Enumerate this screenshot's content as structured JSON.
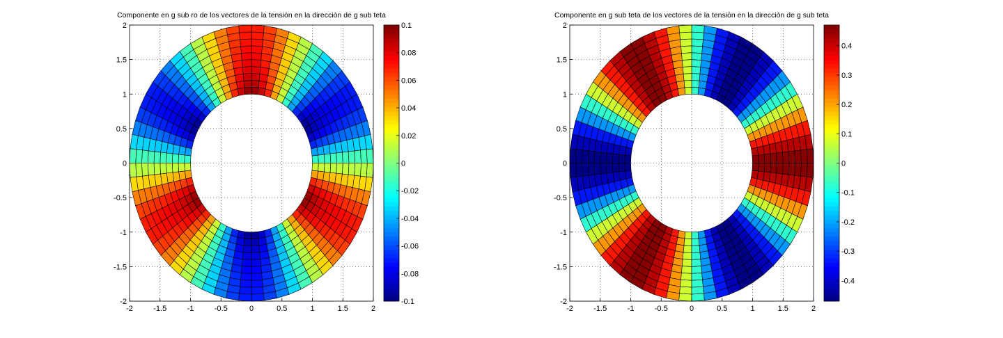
{
  "chart_data": [
    {
      "type": "heatmap",
      "subtype": "polar surface (annulus mesh)",
      "title": "Componente en g sub ro de los vectores de la tensiòn en la direcciòn de g sub teta",
      "xlabel": "",
      "ylabel": "",
      "xlim": [
        -2,
        2
      ],
      "ylim": [
        -2,
        2
      ],
      "xticks": [
        "-2",
        "-1.5",
        "-1",
        "-0.5",
        "0",
        "0.5",
        "1",
        "1.5",
        "2"
      ],
      "yticks": [
        "2",
        "1.5",
        "1",
        "0.5",
        "0",
        "-0.5",
        "-1",
        "-1.5",
        "-2"
      ],
      "grid": true,
      "r_range": [
        1,
        2
      ],
      "radial_rings": 10,
      "angular_sectors": 60,
      "field": {
        "form": "-A*sin(3*theta)*(0.6+0.4/r^2)",
        "amplitude": 0.1
      },
      "colormap": "jet",
      "clim": [
        -0.1,
        0.1
      ],
      "colorbar_ticks": [
        "0.1",
        "0.08",
        "0.06",
        "0.04",
        "0.02",
        "0",
        "-0.02",
        "-0.04",
        "-0.06",
        "-0.08",
        "-0.1"
      ],
      "colorbar_values": [
        0.1,
        0.08,
        0.06,
        0.04,
        0.02,
        0,
        -0.02,
        -0.04,
        -0.06,
        -0.08,
        -0.1
      ]
    },
    {
      "type": "heatmap",
      "subtype": "polar surface (annulus mesh)",
      "title": "Componente en g sub teta de los vectores de la tensiòn en la direcciòn de g sub teta",
      "xlabel": "",
      "ylabel": "",
      "xlim": [
        -2,
        2
      ],
      "ylim": [
        -2,
        2
      ],
      "xticks": [
        "-2",
        "-1.5",
        "-1",
        "-0.5",
        "0",
        "0.5",
        "1",
        "1.5",
        "2"
      ],
      "yticks": [
        "2",
        "1.5",
        "1",
        "0.5",
        "0",
        "-0.5",
        "-1",
        "-1.5",
        "-2"
      ],
      "grid": true,
      "r_range": [
        1,
        2
      ],
      "radial_rings": 10,
      "angular_sectors": 60,
      "field": {
        "form": "A*cos(3*theta)",
        "amplitude": 0.47
      },
      "colormap": "jet",
      "clim": [
        -0.47,
        0.47
      ],
      "colorbar_ticks": [
        "0.4",
        "0.3",
        "0.2",
        "0.1",
        "0",
        "-0.1",
        "-0.2",
        "-0.3",
        "-0.4"
      ],
      "colorbar_values": [
        0.4,
        0.3,
        0.2,
        0.1,
        0,
        -0.1,
        -0.2,
        -0.3,
        -0.4
      ]
    }
  ]
}
